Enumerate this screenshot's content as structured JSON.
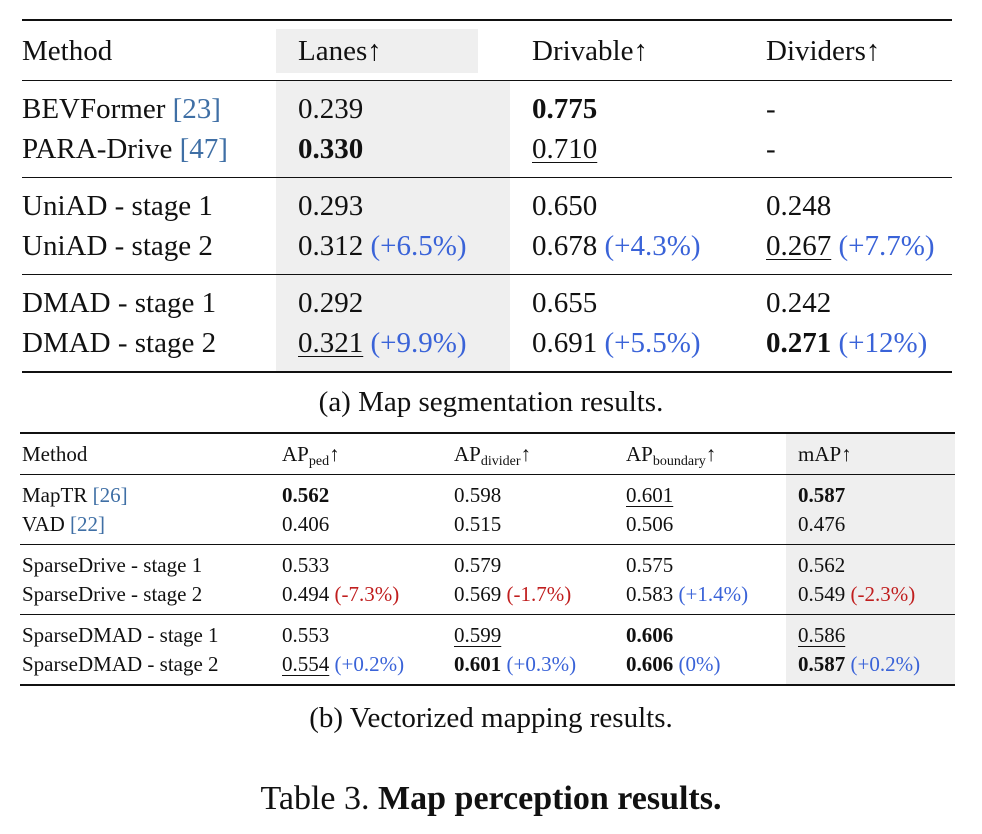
{
  "table_a": {
    "headers": [
      "Method",
      "Lanes↑",
      "Drivable↑",
      "Dividers↑"
    ],
    "groups": [
      [
        {
          "method": "BEVFormer ",
          "cite": "[23]",
          "lanes": "0.239",
          "lanes_d": "",
          "drivable": "0.775",
          "drivable_d": "",
          "dividers": "-",
          "dividers_d": ""
        },
        {
          "method": "PARA-Drive ",
          "cite": "[47]",
          "lanes": "0.330",
          "lanes_d": "",
          "drivable": "0.710",
          "drivable_d": "",
          "dividers": "-",
          "dividers_d": ""
        }
      ],
      [
        {
          "method": "UniAD - stage 1",
          "cite": "",
          "lanes": "0.293",
          "lanes_d": "",
          "drivable": "0.650",
          "drivable_d": "",
          "dividers": "0.248",
          "dividers_d": ""
        },
        {
          "method": "UniAD - stage 2",
          "cite": "",
          "lanes": "0.312",
          "lanes_d": "(+6.5%)",
          "drivable": "0.678",
          "drivable_d": "(+4.3%)",
          "dividers": "0.267",
          "dividers_d": "(+7.7%)"
        }
      ],
      [
        {
          "method": "DMAD - stage 1",
          "cite": "",
          "lanes": "0.292",
          "lanes_d": "",
          "drivable": "0.655",
          "drivable_d": "",
          "dividers": "0.242",
          "dividers_d": ""
        },
        {
          "method": "DMAD - stage 2",
          "cite": "",
          "lanes": "0.321",
          "lanes_d": "(+9.9%)",
          "drivable": "0.691",
          "drivable_d": "(+5.5%)",
          "dividers": "0.271",
          "dividers_d": "(+12%)"
        }
      ]
    ],
    "caption": "(a) Map segmentation results."
  },
  "table_b": {
    "headers": {
      "method": "Method",
      "ap": "AP",
      "ped_sub": "ped",
      "divider_sub": "divider",
      "boundary_sub": "boundary",
      "arrow": "↑",
      "map": "mAP↑"
    },
    "groups": [
      [
        {
          "method": "MapTR ",
          "cite": "[26]",
          "ped": "0.562",
          "ped_d": "",
          "divider": "0.598",
          "divider_d": "",
          "boundary": "0.601",
          "boundary_d": "",
          "map": "0.587",
          "map_d": ""
        },
        {
          "method": "VAD ",
          "cite": "[22]",
          "ped": "0.406",
          "ped_d": "",
          "divider": "0.515",
          "divider_d": "",
          "boundary": "0.506",
          "boundary_d": "",
          "map": "0.476",
          "map_d": ""
        }
      ],
      [
        {
          "method": "SparseDrive - stage 1",
          "cite": "",
          "ped": "0.533",
          "ped_d": "",
          "divider": "0.579",
          "divider_d": "",
          "boundary": "0.575",
          "boundary_d": "",
          "map": "0.562",
          "map_d": ""
        },
        {
          "method": "SparseDrive - stage 2",
          "cite": "",
          "ped": "0.494",
          "ped_d": "(-7.3%)",
          "divider": "0.569",
          "divider_d": "(-1.7%)",
          "boundary": "0.583",
          "boundary_d": "(+1.4%)",
          "map": "0.549",
          "map_d": "(-2.3%)"
        }
      ],
      [
        {
          "method": "SparseDMAD - stage 1",
          "cite": "",
          "ped": "0.553",
          "ped_d": "",
          "divider": "0.599",
          "divider_d": "",
          "boundary": "0.606",
          "boundary_d": "",
          "map": "0.586",
          "map_d": ""
        },
        {
          "method": "SparseDMAD - stage 2",
          "cite": "",
          "ped": "0.554",
          "ped_d": "(+0.2%)",
          "divider": "0.601",
          "divider_d": "(+0.3%)",
          "boundary": "0.606",
          "boundary_d": "(0%)",
          "map": "0.587",
          "map_d": "(+0.2%)"
        }
      ]
    ],
    "caption": "(b) Vectorized mapping results."
  },
  "caption": {
    "prefix": "Table 3. ",
    "title": "Map perception results."
  }
}
